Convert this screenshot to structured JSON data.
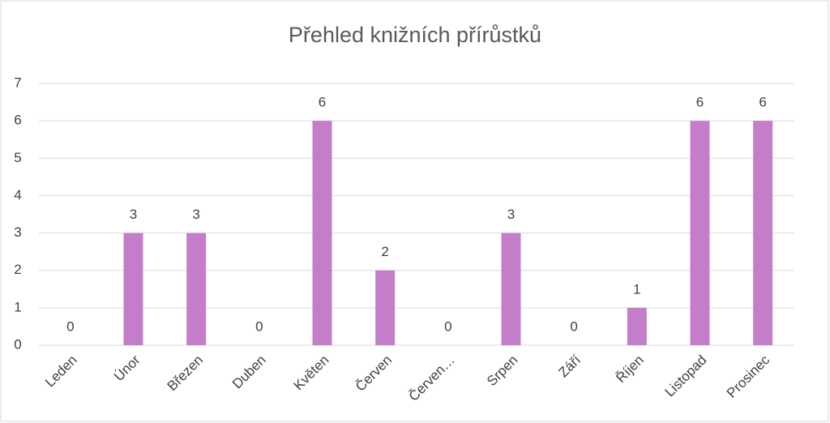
{
  "chart_data": {
    "type": "bar",
    "title": "Přehled knižních přírůstků",
    "categories": [
      "Leden",
      "Únor",
      "Březen",
      "Duben",
      "Květen",
      "Červen",
      "Červen…",
      "Srpen",
      "Září",
      "Říjen",
      "Listopad",
      "Prosinec"
    ],
    "values": [
      0,
      3,
      3,
      0,
      6,
      2,
      0,
      3,
      0,
      1,
      6,
      6
    ],
    "color": "#c47ec9",
    "ylim": [
      0,
      7
    ],
    "yticks": [
      0,
      1,
      2,
      3,
      4,
      5,
      6,
      7
    ],
    "grid": true,
    "data_labels": true
  }
}
